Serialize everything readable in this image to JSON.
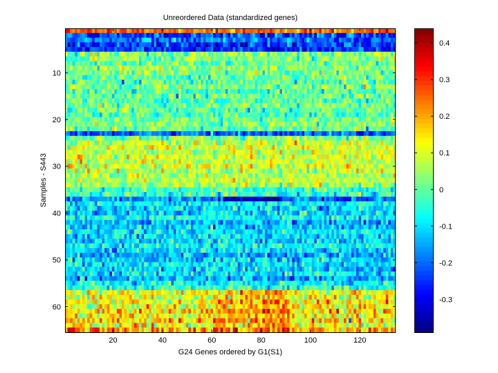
{
  "chart_data": {
    "type": "heatmap",
    "title": "Unreordered Data (standardized genes)",
    "xlabel": "G24 Genes ordered by G1(S1)",
    "ylabel": "Samples - S443",
    "n_rows": 65,
    "n_cols": 134,
    "xlim": [
      0.5,
      134.5
    ],
    "ylim": [
      0.5,
      65.5
    ],
    "xticks": [
      20,
      40,
      60,
      80,
      100,
      120
    ],
    "yticks": [
      10,
      20,
      30,
      40,
      50,
      60
    ],
    "colormap": "jet",
    "clim": [
      -0.39,
      0.44
    ],
    "colorbar_ticks": [
      -0.3,
      -0.2,
      -0.1,
      0,
      0.1,
      0.2,
      0.3,
      0.4
    ],
    "row_mean_values": [
      0.25,
      -0.24,
      -0.2,
      -0.24,
      -0.25,
      0.03,
      0.02,
      0.0,
      0.03,
      0.01,
      0.0,
      -0.01,
      0.02,
      -0.02,
      0.0,
      -0.01,
      0.02,
      0.0,
      -0.02,
      0.01,
      0.02,
      0.0,
      -0.2,
      0.03,
      0.08,
      0.1,
      0.06,
      0.1,
      0.08,
      0.1,
      0.07,
      0.06,
      0.08,
      0.05,
      -0.03,
      -0.05,
      -0.18,
      -0.08,
      -0.1,
      -0.12,
      -0.08,
      -0.14,
      -0.12,
      -0.09,
      -0.1,
      -0.11,
      -0.08,
      -0.1,
      -0.14,
      -0.11,
      -0.1,
      -0.12,
      -0.1,
      -0.15,
      -0.08,
      -0.05,
      0.12,
      0.1,
      0.14,
      0.12,
      0.16,
      0.13,
      0.15,
      0.12,
      0.2
    ],
    "noise_std": 0.06,
    "random_seed": 7
  }
}
